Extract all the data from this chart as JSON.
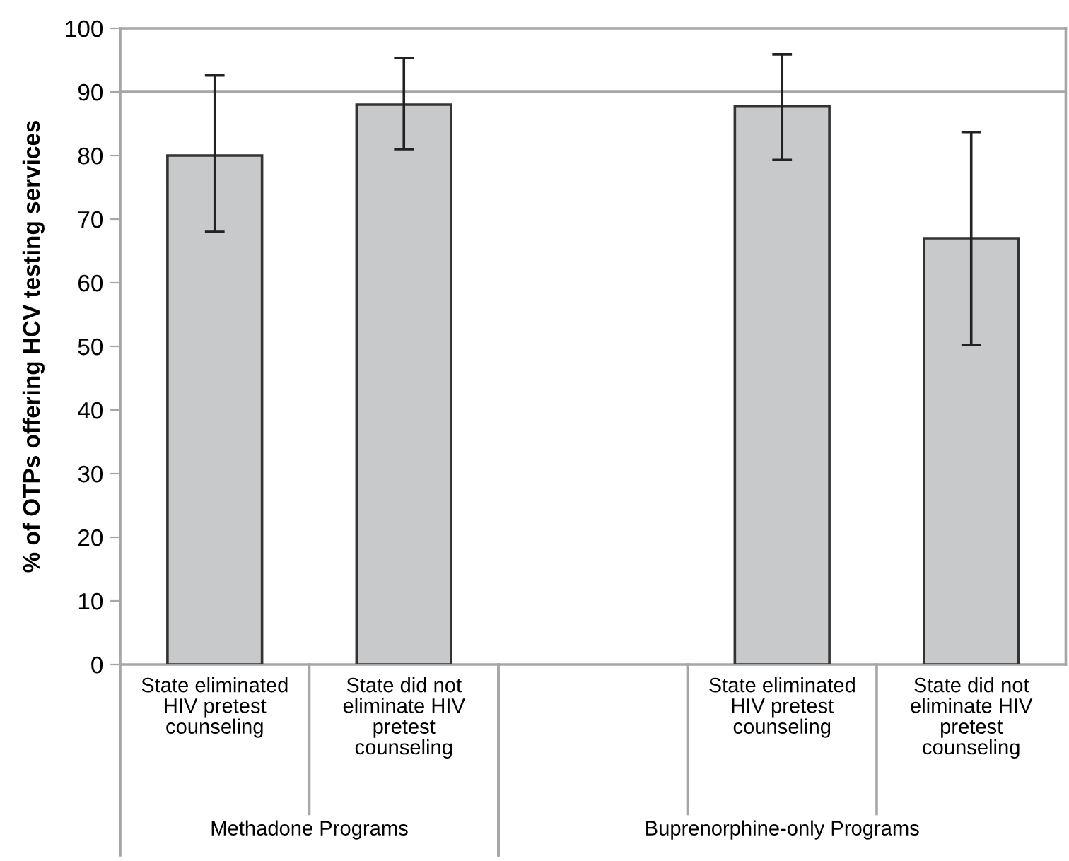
{
  "chart_data": {
    "type": "bar",
    "ylabel": "% of OTPs offering HCV testing services",
    "categories": [
      "State eliminated\nHIV pretest\ncounseling",
      "State did not\neliminate HIV\npretest\ncounseling",
      null,
      "State eliminated\nHIV pretest\ncounseling",
      "State did not\neliminate HIV\npretest\ncounseling"
    ],
    "values": [
      80.0,
      88.0,
      null,
      87.7,
      67.0
    ],
    "errors": [
      [
        68.0,
        92.6
      ],
      [
        81.0,
        95.3
      ],
      null,
      [
        79.3,
        95.9
      ],
      [
        50.2,
        83.7
      ]
    ],
    "color": "#c8c9cb",
    "ylim": [
      0,
      100
    ],
    "yticks": [
      0,
      10,
      20,
      30,
      40,
      50,
      60,
      70,
      80,
      90,
      100
    ],
    "ref_lines": [
      {
        "axis": "y",
        "value": 90,
        "color": "#a6a6a6"
      }
    ],
    "annotations": [
      "Methadone Programs",
      "Buprenorphine-only Programs"
    ],
    "grid": false
  }
}
